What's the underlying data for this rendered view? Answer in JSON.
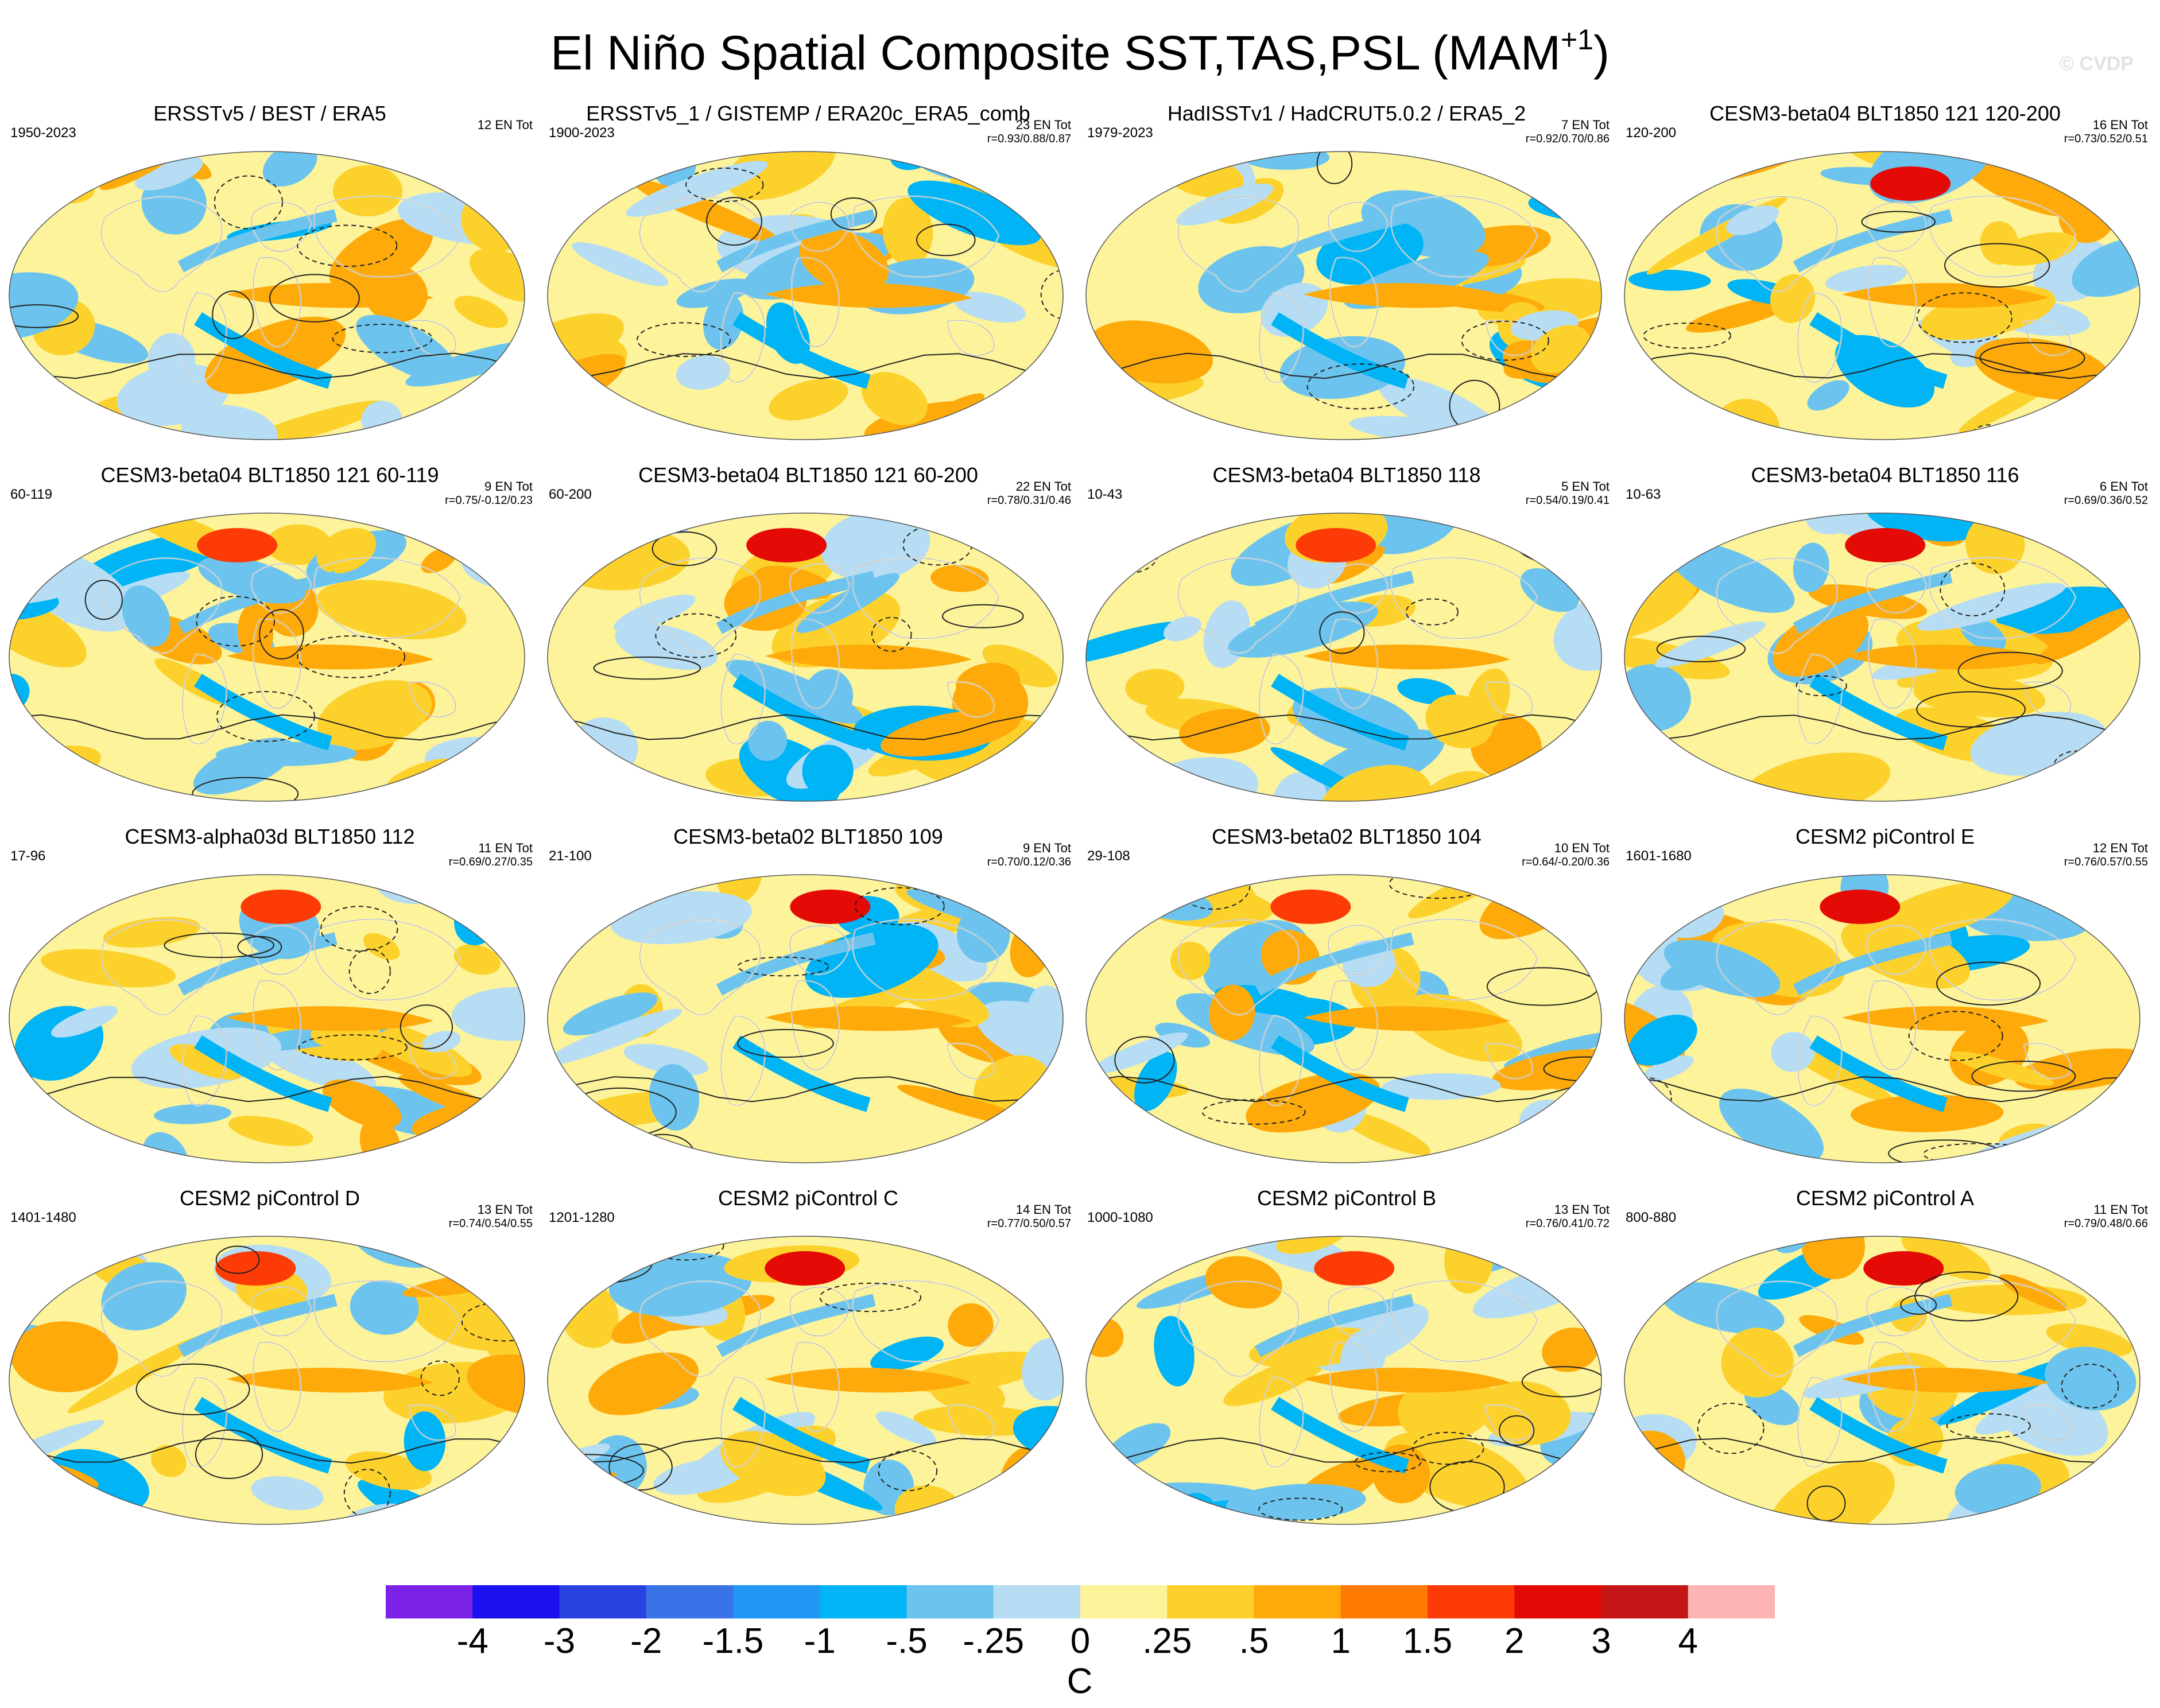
{
  "header": {
    "title": "El Niño Spatial Composite SST,TAS,PSL (MAM",
    "title_superscript": "+1",
    "title_close": ")",
    "watermark": "© CVDP"
  },
  "panels": [
    {
      "title": "ERSSTv5 / BEST / ERA5",
      "years": "1950-2023",
      "count": "12 EN Tot",
      "corr": ""
    },
    {
      "title": "ERSSTv5_1 / GISTEMP / ERA20c_ERA5_comb",
      "years": "1900-2023",
      "count": "23 EN Tot",
      "corr": "r=0.93/0.88/0.87"
    },
    {
      "title": "HadISSTv1 / HadCRUT5.0.2 / ERA5_2",
      "years": "1979-2023",
      "count": "7 EN Tot",
      "corr": "r=0.92/0.70/0.86"
    },
    {
      "title": "CESM3-beta04 BLT1850 121 120-200",
      "years": "120-200",
      "count": "16 EN Tot",
      "corr": "r=0.73/0.52/0.51"
    },
    {
      "title": "CESM3-beta04 BLT1850 121 60-119",
      "years": "60-119",
      "count": "9 EN Tot",
      "corr": "r=0.75/-0.12/0.23"
    },
    {
      "title": "CESM3-beta04 BLT1850 121 60-200",
      "years": "60-200",
      "count": "22 EN Tot",
      "corr": "r=0.78/0.31/0.46"
    },
    {
      "title": "CESM3-beta04 BLT1850 118",
      "years": "10-43",
      "count": "5 EN Tot",
      "corr": "r=0.54/0.19/0.41"
    },
    {
      "title": "CESM3-beta04 BLT1850 116",
      "years": "10-63",
      "count": "6 EN Tot",
      "corr": "r=0.69/0.36/0.52"
    },
    {
      "title": "CESM3-alpha03d BLT1850 112",
      "years": "17-96",
      "count": "11 EN Tot",
      "corr": "r=0.69/0.27/0.35"
    },
    {
      "title": "CESM3-beta02 BLT1850 109",
      "years": "21-100",
      "count": "9 EN Tot",
      "corr": "r=0.70/0.12/0.36"
    },
    {
      "title": "CESM3-beta02 BLT1850 104",
      "years": "29-108",
      "count": "10 EN Tot",
      "corr": "r=0.64/-0.20/0.36"
    },
    {
      "title": "CESM2 piControl E",
      "years": "1601-1680",
      "count": "12 EN Tot",
      "corr": "r=0.76/0.57/0.55"
    },
    {
      "title": "CESM2 piControl D",
      "years": "1401-1480",
      "count": "13 EN Tot",
      "corr": "r=0.74/0.54/0.55"
    },
    {
      "title": "CESM2 piControl C",
      "years": "1201-1280",
      "count": "14 EN Tot",
      "corr": "r=0.77/0.50/0.57"
    },
    {
      "title": "CESM2 piControl B",
      "years": "1000-1080",
      "count": "13 EN Tot",
      "corr": "r=0.76/0.41/0.72"
    },
    {
      "title": "CESM2 piControl A",
      "years": "800-880",
      "count": "11 EN Tot",
      "corr": "r=0.79/0.48/0.66"
    }
  ],
  "chart_data": {
    "type": "heatmap",
    "title": "El Niño Spatial Composite SST,TAS,PSL (MAM+1)",
    "projection": "global map (Robinson-like)",
    "variables": [
      "SST",
      "TAS",
      "PSL"
    ],
    "units": "C",
    "colorbar": {
      "tick_labels": [
        "-4",
        "-3",
        "-2",
        "-1.5",
        "-1",
        "-.5",
        "-.25",
        "0",
        ".25",
        ".5",
        "1",
        "1.5",
        "2",
        "3",
        "4"
      ],
      "colors": [
        "#7b22e6",
        "#1a10f0",
        "#2a42e2",
        "#3a72e8",
        "#2196f3",
        "#00b4f5",
        "#6cc4ee",
        "#b6ddf3",
        "#fcf39b",
        "#fdd12c",
        "#fdaa0a",
        "#fd7b02",
        "#fd3b06",
        "#e40a06",
        "#c41616",
        "#fdb4b4"
      ]
    },
    "panel_count": 16,
    "layout": "4 rows x 4 columns"
  }
}
